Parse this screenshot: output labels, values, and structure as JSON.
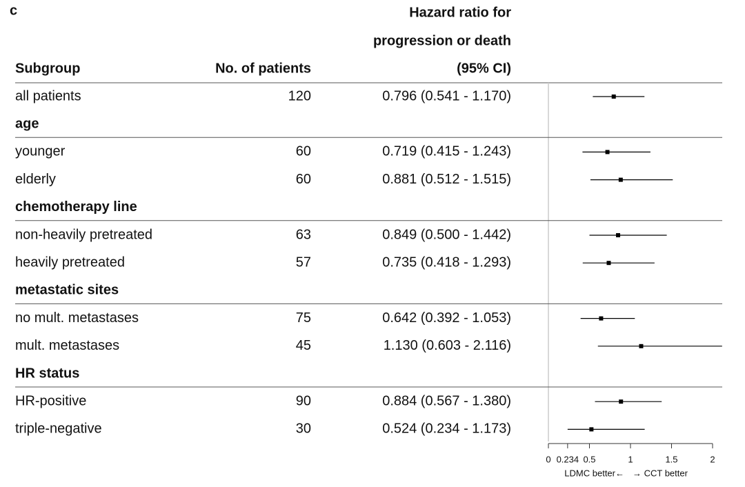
{
  "chart_data": {
    "type": "forest",
    "panel_label": "c",
    "columns": {
      "subgroup": "Subgroup",
      "patients": "No. of patients",
      "hazard_ratio": [
        "Hazard ratio for",
        "progression or death",
        "(95% CI)"
      ]
    },
    "rows": [
      {
        "label": "all patients",
        "n": 120,
        "ci_label": "0.796 (0.541 - 1.170)",
        "hr": 0.796,
        "lower": 0.541,
        "upper": 1.17
      },
      {
        "label": "age"
      },
      {
        "label": "younger",
        "n": 60,
        "ci_label": "0.719 (0.415 - 1.243)",
        "hr": 0.719,
        "lower": 0.415,
        "upper": 1.243
      },
      {
        "label": "elderly",
        "n": 60,
        "ci_label": "0.881 (0.512 - 1.515)",
        "hr": 0.881,
        "lower": 0.512,
        "upper": 1.515
      },
      {
        "label": "chemotherapy line"
      },
      {
        "label": "non-heavily pretreated",
        "n": 63,
        "ci_label": "0.849 (0.500 - 1.442)",
        "hr": 0.849,
        "lower": 0.5,
        "upper": 1.442
      },
      {
        "label": "heavily pretreated",
        "n": 57,
        "ci_label": "0.735 (0.418 - 1.293)",
        "hr": 0.735,
        "lower": 0.418,
        "upper": 1.293
      },
      {
        "label": "metastatic sites"
      },
      {
        "label": "no mult. metastases",
        "n": 75,
        "ci_label": "0.642 (0.392 - 1.053)",
        "hr": 0.642,
        "lower": 0.392,
        "upper": 1.053
      },
      {
        "label": "mult. metastases",
        "n": 45,
        "ci_label": "1.130 (0.603 - 2.116)",
        "hr": 1.13,
        "lower": 0.603,
        "upper": 2.116
      },
      {
        "label": "HR status"
      },
      {
        "label": "HR-positive",
        "n": 90,
        "ci_label": "0.884 (0.567 - 1.380)",
        "hr": 0.884,
        "lower": 0.567,
        "upper": 1.38
      },
      {
        "label": "triple-negative",
        "n": 30,
        "ci_label": "0.524 (0.234 - 1.173)",
        "hr": 0.524,
        "lower": 0.234,
        "upper": 1.173
      }
    ],
    "xlim": [
      0,
      2
    ],
    "xticks": [
      0,
      0.234,
      0.5,
      1,
      1.5,
      2
    ],
    "xlabel_left": "LDMC better←",
    "xlabel_right": "→ CCT better",
    "color": "#000000"
  }
}
